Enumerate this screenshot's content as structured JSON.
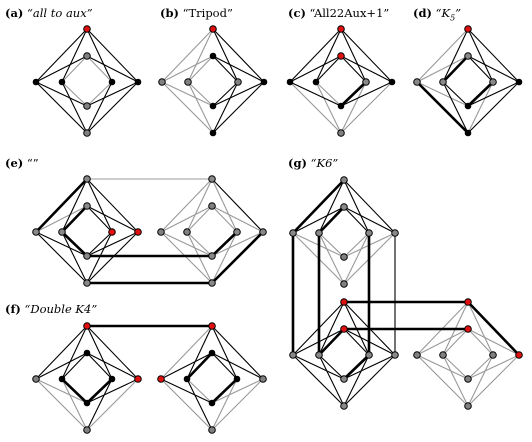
{
  "captions": {
    "a": {
      "label": "(a)",
      "text": "“all to aux”",
      "italic": true
    },
    "b": {
      "label": "(b)",
      "text": "“Tripod”",
      "italic": false
    },
    "c": {
      "label": "(c)",
      "text": "“All22Aux+1”",
      "italic": false
    },
    "d": {
      "label": "(d)",
      "text_pre": "“K",
      "sub": "5",
      "text_post": "”",
      "italic": true
    },
    "e": {
      "label": "(e)",
      "text": "“”",
      "italic": false
    },
    "f": {
      "label": "(f)",
      "text": "“Double K4”",
      "italic": true
    },
    "g": {
      "label": "(g)",
      "text": "“K6”",
      "italic": true
    }
  },
  "colors": {
    "gray_edge": "#999999",
    "black_edge": "#000000",
    "red_node": "#e01010",
    "black_node": "#000000",
    "gray_node": "#808080",
    "gray_fill_node": "#888888"
  }
}
